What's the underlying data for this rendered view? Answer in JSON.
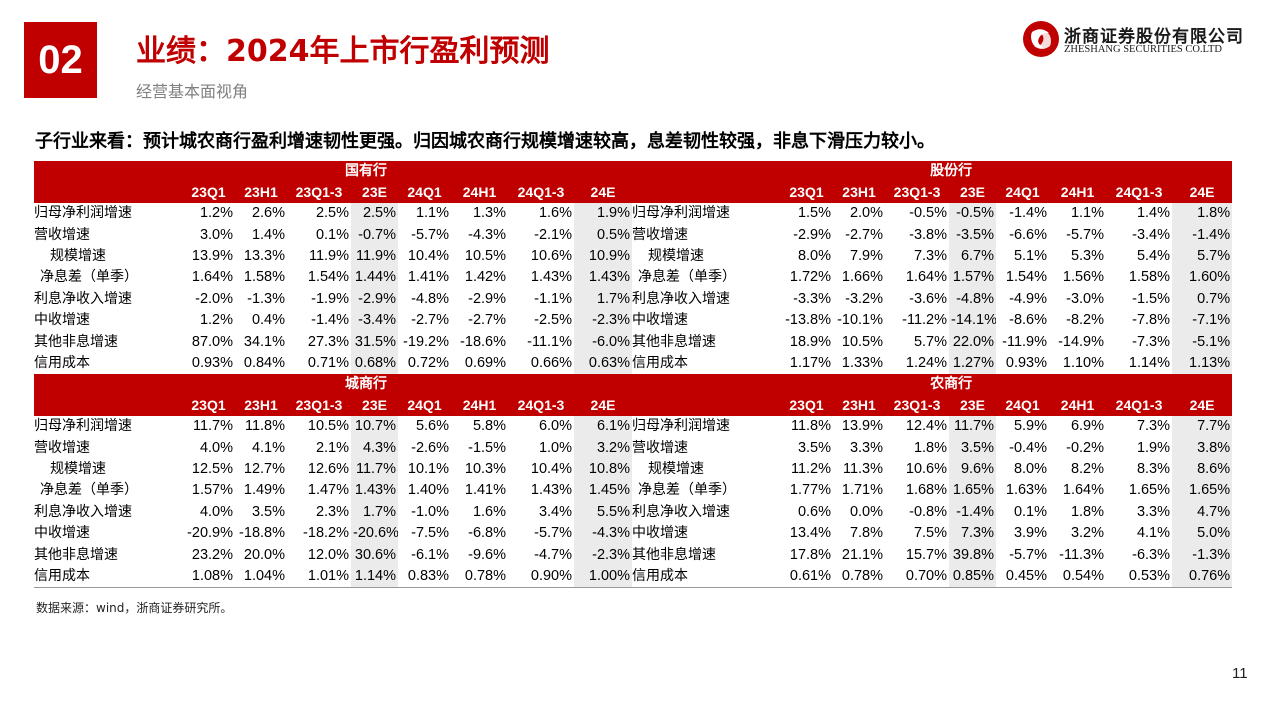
{
  "header": {
    "section_number": "02",
    "title": "业绩：2024年上市行盈利预测",
    "subtitle": "经营基本面视角"
  },
  "logo": {
    "cn_name": "浙商证券股份有限公司",
    "en_name": "ZHESHANG SECURITIES CO.LTD",
    "brand_color": "#c00000"
  },
  "summary": "子行业来看：预计城农商行盈利增速韧性更强。归因城农商行规模增速较高，息差韧性较强，非息下滑压力较小。",
  "columns": [
    "23Q1",
    "23H1",
    "23Q1-3",
    "23E",
    "24Q1",
    "24H1",
    "24Q1-3",
    "24E"
  ],
  "panels": {
    "state_owned": {
      "name": "国有行",
      "rows": [
        {
          "label": "归母净利润增速",
          "values": [
            "1.2%",
            "2.6%",
            "2.5%",
            "2.5%",
            "1.1%",
            "1.3%",
            "1.6%",
            "1.9%"
          ]
        },
        {
          "label": "营收增速",
          "values": [
            "3.0%",
            "1.4%",
            "0.1%",
            "-0.7%",
            "-5.7%",
            "-4.3%",
            "-2.1%",
            "0.5%"
          ]
        },
        {
          "label": "规模增速",
          "values": [
            "13.9%",
            "13.3%",
            "11.9%",
            "11.9%",
            "10.4%",
            "10.5%",
            "10.6%",
            "10.9%"
          ]
        },
        {
          "label": "净息差（单季）",
          "values": [
            "1.64%",
            "1.58%",
            "1.54%",
            "1.44%",
            "1.41%",
            "1.42%",
            "1.43%",
            "1.43%"
          ]
        },
        {
          "label": "利息净收入增速",
          "values": [
            "-2.0%",
            "-1.3%",
            "-1.9%",
            "-2.9%",
            "-4.8%",
            "-2.9%",
            "-1.1%",
            "1.7%"
          ]
        },
        {
          "label": "中收增速",
          "values": [
            "1.2%",
            "0.4%",
            "-1.4%",
            "-3.4%",
            "-2.7%",
            "-2.7%",
            "-2.5%",
            "-2.3%"
          ]
        },
        {
          "label": "其他非息增速",
          "values": [
            "87.0%",
            "34.1%",
            "27.3%",
            "31.5%",
            "-19.2%",
            "-18.6%",
            "-11.1%",
            "-6.0%"
          ]
        },
        {
          "label": "信用成本",
          "values": [
            "0.93%",
            "0.84%",
            "0.71%",
            "0.68%",
            "0.72%",
            "0.69%",
            "0.66%",
            "0.63%"
          ]
        }
      ]
    },
    "joint_stock": {
      "name": "股份行",
      "rows": [
        {
          "label": "归母净利润增速",
          "values": [
            "1.5%",
            "2.0%",
            "-0.5%",
            "-0.5%",
            "-1.4%",
            "1.1%",
            "1.4%",
            "1.8%"
          ]
        },
        {
          "label": "营收增速",
          "values": [
            "-2.9%",
            "-2.7%",
            "-3.8%",
            "-3.5%",
            "-6.6%",
            "-5.7%",
            "-3.4%",
            "-1.4%"
          ]
        },
        {
          "label": "规模增速",
          "values": [
            "8.0%",
            "7.9%",
            "7.3%",
            "6.7%",
            "5.1%",
            "5.3%",
            "5.4%",
            "5.7%"
          ]
        },
        {
          "label": "净息差（单季）",
          "values": [
            "1.72%",
            "1.66%",
            "1.64%",
            "1.57%",
            "1.54%",
            "1.56%",
            "1.58%",
            "1.60%"
          ]
        },
        {
          "label": "利息净收入增速",
          "values": [
            "-3.3%",
            "-3.2%",
            "-3.6%",
            "-4.8%",
            "-4.9%",
            "-3.0%",
            "-1.5%",
            "0.7%"
          ]
        },
        {
          "label": "中收增速",
          "values": [
            "-13.8%",
            "-10.1%",
            "-11.2%",
            "-14.1%",
            "-8.6%",
            "-8.2%",
            "-7.8%",
            "-7.1%"
          ]
        },
        {
          "label": "其他非息增速",
          "values": [
            "18.9%",
            "10.5%",
            "5.7%",
            "22.0%",
            "-11.9%",
            "-14.9%",
            "-7.3%",
            "-5.1%"
          ]
        },
        {
          "label": "信用成本",
          "values": [
            "1.17%",
            "1.33%",
            "1.24%",
            "1.27%",
            "0.93%",
            "1.10%",
            "1.14%",
            "1.13%"
          ]
        }
      ]
    },
    "city_commercial": {
      "name": "城商行",
      "rows": [
        {
          "label": "归母净利润增速",
          "values": [
            "11.7%",
            "11.8%",
            "10.5%",
            "10.7%",
            "5.6%",
            "5.8%",
            "6.0%",
            "6.1%"
          ]
        },
        {
          "label": "营收增速",
          "values": [
            "4.0%",
            "4.1%",
            "2.1%",
            "4.3%",
            "-2.6%",
            "-1.5%",
            "1.0%",
            "3.2%"
          ]
        },
        {
          "label": "规模增速",
          "values": [
            "12.5%",
            "12.7%",
            "12.6%",
            "11.7%",
            "10.1%",
            "10.3%",
            "10.4%",
            "10.8%"
          ]
        },
        {
          "label": "净息差（单季）",
          "values": [
            "1.57%",
            "1.49%",
            "1.47%",
            "1.43%",
            "1.40%",
            "1.41%",
            "1.43%",
            "1.45%"
          ]
        },
        {
          "label": "利息净收入增速",
          "values": [
            "4.0%",
            "3.5%",
            "2.3%",
            "1.7%",
            "-1.0%",
            "1.6%",
            "3.4%",
            "5.5%"
          ]
        },
        {
          "label": "中收增速",
          "values": [
            "-20.9%",
            "-18.8%",
            "-18.2%",
            "-20.6%",
            "-7.5%",
            "-6.8%",
            "-5.7%",
            "-4.3%"
          ]
        },
        {
          "label": "其他非息增速",
          "values": [
            "23.2%",
            "20.0%",
            "12.0%",
            "30.6%",
            "-6.1%",
            "-9.6%",
            "-4.7%",
            "-2.3%"
          ]
        },
        {
          "label": "信用成本",
          "values": [
            "1.08%",
            "1.04%",
            "1.01%",
            "1.14%",
            "0.83%",
            "0.78%",
            "0.90%",
            "1.00%"
          ]
        }
      ]
    },
    "rural_commercial": {
      "name": "农商行",
      "rows": [
        {
          "label": "归母净利润增速",
          "values": [
            "11.8%",
            "13.9%",
            "12.4%",
            "11.7%",
            "5.9%",
            "6.9%",
            "7.3%",
            "7.7%"
          ]
        },
        {
          "label": "营收增速",
          "values": [
            "3.5%",
            "3.3%",
            "1.8%",
            "3.5%",
            "-0.4%",
            "-0.2%",
            "1.9%",
            "3.8%"
          ]
        },
        {
          "label": "规模增速",
          "values": [
            "11.2%",
            "11.3%",
            "10.6%",
            "9.6%",
            "8.0%",
            "8.2%",
            "8.3%",
            "8.6%"
          ]
        },
        {
          "label": "净息差（单季）",
          "values": [
            "1.77%",
            "1.71%",
            "1.68%",
            "1.65%",
            "1.63%",
            "1.64%",
            "1.65%",
            "1.65%"
          ]
        },
        {
          "label": "利息净收入增速",
          "values": [
            "0.6%",
            "0.0%",
            "-0.8%",
            "-1.4%",
            "0.1%",
            "1.8%",
            "3.3%",
            "4.7%"
          ]
        },
        {
          "label": "中收增速",
          "values": [
            "13.4%",
            "7.8%",
            "7.5%",
            "7.3%",
            "3.9%",
            "3.2%",
            "4.1%",
            "5.0%"
          ]
        },
        {
          "label": "其他非息增速",
          "values": [
            "17.8%",
            "21.1%",
            "15.7%",
            "39.8%",
            "-5.7%",
            "-11.3%",
            "-6.3%",
            "-1.3%"
          ]
        },
        {
          "label": "信用成本",
          "values": [
            "0.61%",
            "0.78%",
            "0.70%",
            "0.85%",
            "0.45%",
            "0.54%",
            "0.53%",
            "0.76%"
          ]
        }
      ]
    }
  },
  "source_note": "数据来源：wind，浙商证券研究所。",
  "page_number": "11"
}
